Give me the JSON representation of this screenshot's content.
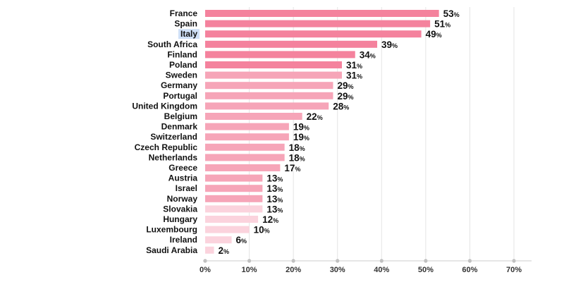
{
  "chart_data": {
    "type": "bar",
    "orientation": "horizontal",
    "categories": [
      "France",
      "Spain",
      "Italy",
      "South Africa",
      "Finland",
      "Poland",
      "Sweden",
      "Germany",
      "Portugal",
      "United Kingdom",
      "Belgium",
      "Denmark",
      "Switzerland",
      "Czech Republic",
      "Netherlands",
      "Greece",
      "Austria",
      "Israel",
      "Norway",
      "Slovakia",
      "Hungary",
      "Luxembourg",
      "Ireland",
      "Saudi Arabia"
    ],
    "values": [
      53,
      51,
      49,
      39,
      34,
      31,
      31,
      29,
      29,
      28,
      22,
      19,
      19,
      18,
      18,
      17,
      13,
      13,
      13,
      13,
      12,
      10,
      6,
      2
    ],
    "value_unit": "%",
    "bar_colors": [
      "#f4829d",
      "#f4829d",
      "#f4829d",
      "#f4829d",
      "#f4829d",
      "#f4829d",
      "#f6a5b8",
      "#f6a5b8",
      "#f6a5b8",
      "#f6a5b8",
      "#f6a5b8",
      "#f6a5b8",
      "#f6a5b8",
      "#f6a5b8",
      "#f6a5b8",
      "#f6a5b8",
      "#f6a5b8",
      "#f6a5b8",
      "#f6a5b8",
      "#fbd3dd",
      "#fbd3dd",
      "#fbd3dd",
      "#fbd3dd",
      "#fbd3dd"
    ],
    "highlighted_category": "Italy",
    "highlight_color": "#cfe0f7",
    "xlim": [
      0,
      70
    ],
    "xticks": [
      0,
      10,
      20,
      30,
      40,
      50,
      60,
      70
    ],
    "xtick_labels": [
      "0%",
      "10%",
      "20%",
      "30%",
      "40%",
      "50%",
      "60%",
      "70%"
    ],
    "grid": true,
    "grid_color": "#e4e4e4",
    "axis_color": "#cccccc",
    "tick_marker_color": "#bbbbbb",
    "title": "",
    "xlabel": "",
    "ylabel": ""
  }
}
